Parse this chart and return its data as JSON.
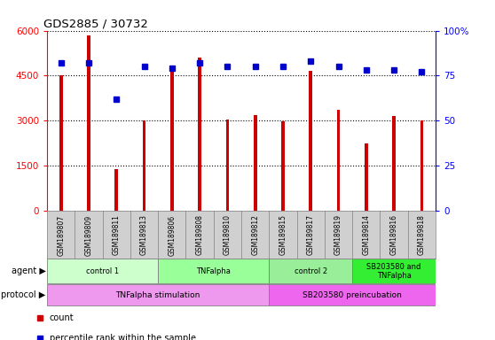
{
  "title": "GDS2885 / 30732",
  "samples": [
    "GSM189807",
    "GSM189809",
    "GSM189811",
    "GSM189813",
    "GSM189806",
    "GSM189808",
    "GSM189810",
    "GSM189812",
    "GSM189815",
    "GSM189817",
    "GSM189819",
    "GSM189814",
    "GSM189816",
    "GSM189818"
  ],
  "counts": [
    4500,
    5850,
    1380,
    3000,
    4700,
    5100,
    3050,
    3200,
    2980,
    4650,
    3350,
    2250,
    3150,
    3000
  ],
  "percentile_ranks": [
    82,
    82,
    62,
    80,
    79,
    82,
    80,
    80,
    80,
    83,
    80,
    78,
    78,
    77
  ],
  "ylim_left": [
    0,
    6000
  ],
  "ylim_right": [
    0,
    100
  ],
  "yticks_left": [
    0,
    1500,
    3000,
    4500,
    6000
  ],
  "yticks_right": [
    0,
    25,
    50,
    75,
    100
  ],
  "bar_color": "#cc0000",
  "dot_color": "#0000cc",
  "agent_groups": [
    {
      "label": "control 1",
      "start": 0,
      "end": 4,
      "color": "#ccffcc"
    },
    {
      "label": "TNFalpha",
      "start": 4,
      "end": 8,
      "color": "#99ff99"
    },
    {
      "label": "control 2",
      "start": 8,
      "end": 11,
      "color": "#99ee99"
    },
    {
      "label": "SB203580 and\nTNFalpha",
      "start": 11,
      "end": 14,
      "color": "#33ee33"
    }
  ],
  "protocol_groups": [
    {
      "label": "TNFalpha stimulation",
      "start": 0,
      "end": 8,
      "color": "#ee99ee"
    },
    {
      "label": "SB203580 preincubation",
      "start": 8,
      "end": 14,
      "color": "#ee66ee"
    }
  ],
  "legend_count_color": "#cc0000",
  "legend_pct_color": "#0000cc",
  "background_color": "#ffffff",
  "label_bg_color": "#d0d0d0",
  "bar_width": 0.12
}
